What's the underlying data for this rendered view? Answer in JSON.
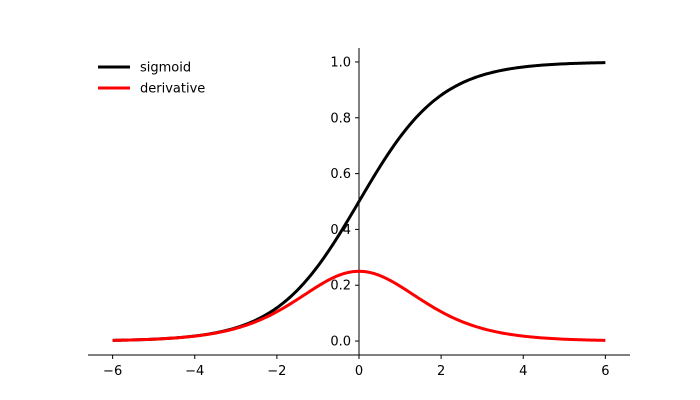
{
  "chart_data": {
    "type": "line",
    "title": "",
    "xlabel": "",
    "ylabel": "",
    "xlim": [
      -6.6,
      6.6
    ],
    "ylim": [
      -0.05,
      1.05
    ],
    "xticks": [
      -6,
      -4,
      -2,
      0,
      2,
      4,
      6
    ],
    "xtick_labels": [
      "−6",
      "−4",
      "−2",
      "0",
      "2",
      "4",
      "6"
    ],
    "yticks": [
      0.0,
      0.2,
      0.4,
      0.6,
      0.8,
      1.0
    ],
    "ytick_labels": [
      "0.0",
      "0.2",
      "0.4",
      "0.6",
      "0.8",
      "1.0"
    ],
    "grid": false,
    "legend_position": "top-left",
    "axes_style": "centered spines: y-axis at x=0, x-axis at bottom",
    "x_range": [
      -6,
      6
    ],
    "series": [
      {
        "name": "sigmoid",
        "color": "#000000",
        "x": [
          -6,
          -5,
          -4,
          -3,
          -2,
          -1.5,
          -1,
          -0.5,
          0,
          0.5,
          1,
          1.5,
          2,
          3,
          4,
          5,
          6
        ],
        "values": [
          0.0025,
          0.0067,
          0.018,
          0.047,
          0.119,
          0.182,
          0.269,
          0.378,
          0.5,
          0.622,
          0.731,
          0.818,
          0.881,
          0.953,
          0.982,
          0.993,
          0.9975
        ]
      },
      {
        "name": "derivative",
        "color": "#ff0000",
        "x": [
          -6,
          -5,
          -4,
          -3,
          -2,
          -1.5,
          -1,
          -0.5,
          0,
          0.5,
          1,
          1.5,
          2,
          3,
          4,
          5,
          6
        ],
        "values": [
          0.0025,
          0.0066,
          0.0177,
          0.0452,
          0.105,
          0.149,
          0.197,
          0.235,
          0.25,
          0.235,
          0.197,
          0.149,
          0.105,
          0.0452,
          0.0177,
          0.0066,
          0.0025
        ]
      }
    ]
  }
}
